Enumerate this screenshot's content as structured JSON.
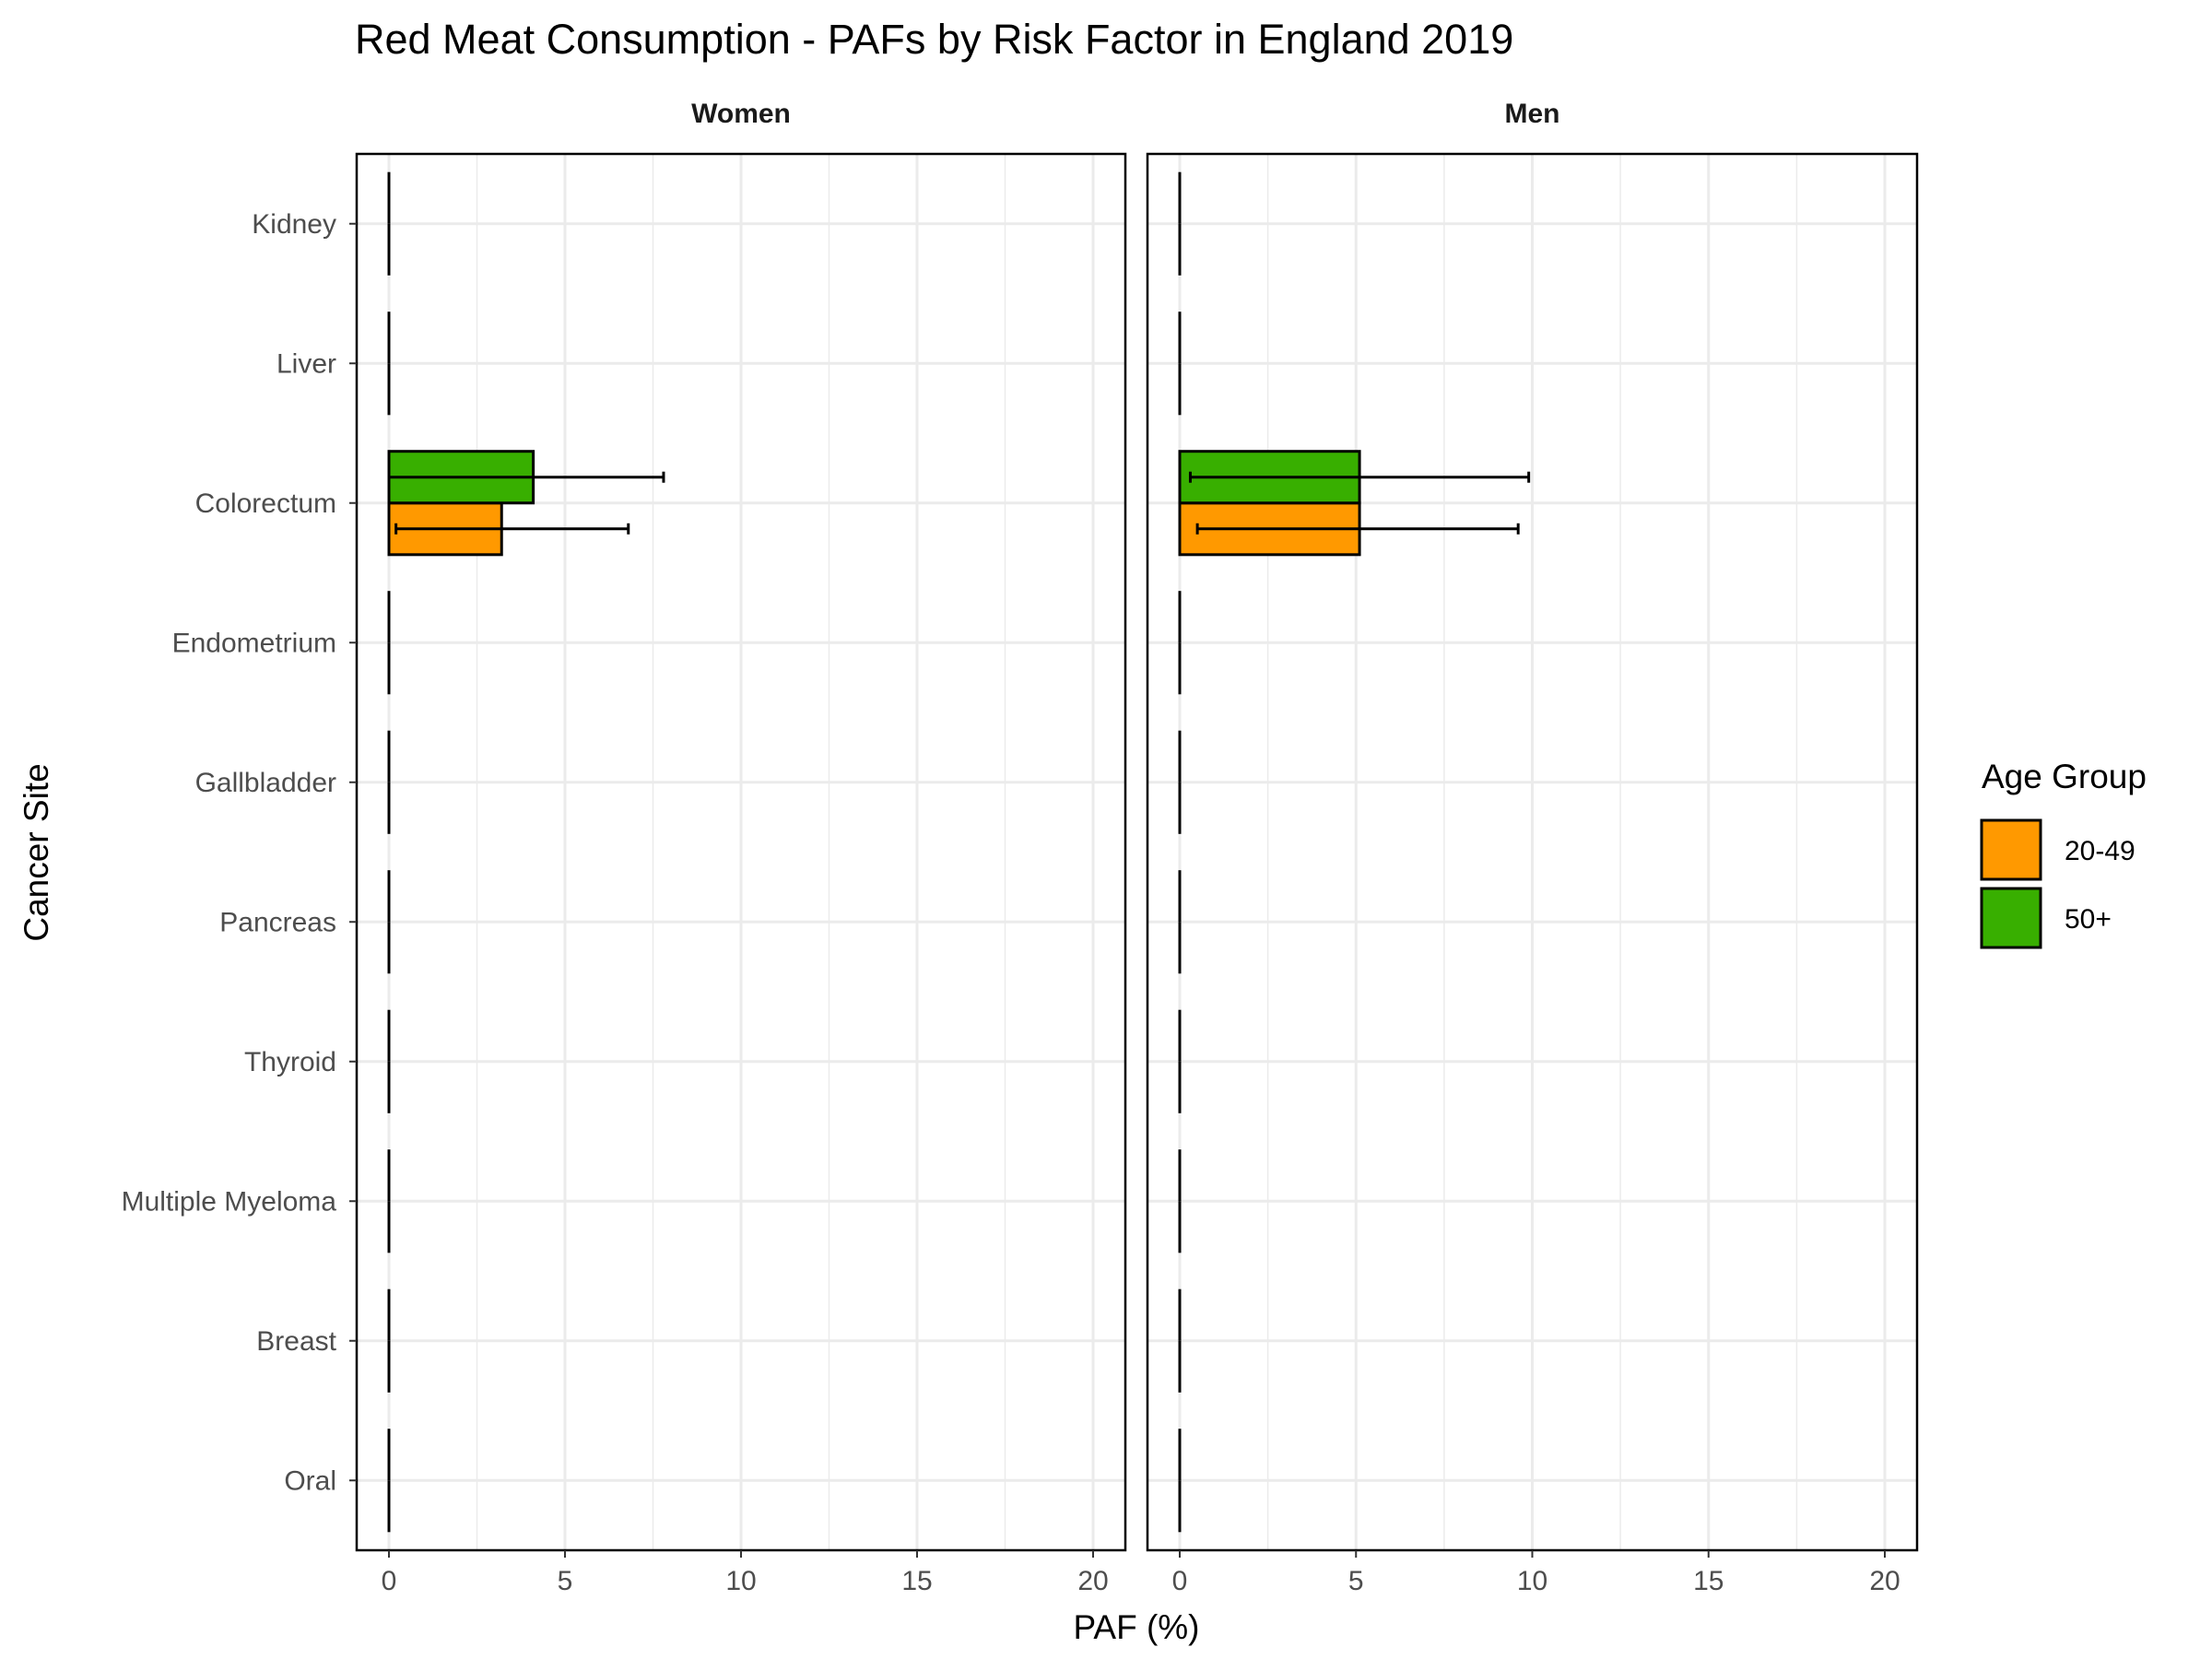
{
  "chart_data": {
    "type": "bar",
    "orientation": "horizontal",
    "title": "Red Meat Consumption  - PAFs by Risk Factor in England 2019",
    "xlabel": "PAF (%)",
    "ylabel": "Cancer Site",
    "xlim": [
      0,
      20
    ],
    "x_ticks": [
      "0",
      "5",
      "10",
      "15",
      "20"
    ],
    "grid": true,
    "legend": {
      "title": "Age Group",
      "position": "right",
      "entries": [
        {
          "label": "20-49",
          "color": "#FF9900"
        },
        {
          "label": "50+",
          "color": "#38AF00"
        }
      ]
    },
    "categories": [
      "Kidney",
      "Liver",
      "Colorectum",
      "Endometrium",
      "Gallbladder",
      "Pancreas",
      "Thyroid",
      "Multiple Myeloma",
      "Breast",
      "Oral"
    ],
    "panels": [
      {
        "name": "Women",
        "series": [
          {
            "name": "20-49",
            "values": [
              0,
              0,
              3.2,
              0,
              0,
              0,
              0,
              0,
              0,
              0
            ],
            "ci_low": [
              0,
              0,
              0.2,
              0,
              0,
              0,
              0,
              0,
              0,
              0
            ],
            "ci_high": [
              0,
              0,
              6.8,
              0,
              0,
              0,
              0,
              0,
              0,
              0
            ]
          },
          {
            "name": "50+",
            "values": [
              0,
              0,
              4.1,
              0,
              0,
              0,
              0,
              0,
              0,
              0
            ],
            "ci_low": [
              0,
              0,
              0,
              0,
              0,
              0,
              0,
              0,
              0,
              0
            ],
            "ci_high": [
              0,
              0,
              7.8,
              0,
              0,
              0,
              0,
              0,
              0,
              0
            ]
          }
        ]
      },
      {
        "name": "Men",
        "series": [
          {
            "name": "20-49",
            "values": [
              0,
              0,
              5.1,
              0,
              0,
              0,
              0,
              0,
              0,
              0
            ],
            "ci_low": [
              0,
              0,
              0.5,
              0,
              0,
              0,
              0,
              0,
              0,
              0
            ],
            "ci_high": [
              0,
              0,
              9.6,
              0,
              0,
              0,
              0,
              0,
              0,
              0
            ]
          },
          {
            "name": "50+",
            "values": [
              0,
              0,
              5.1,
              0,
              0,
              0,
              0,
              0,
              0,
              0
            ],
            "ci_low": [
              0,
              0,
              0.3,
              0,
              0,
              0,
              0,
              0,
              0,
              0
            ],
            "ci_high": [
              0,
              0,
              9.9,
              0,
              0,
              0,
              0,
              0,
              0,
              0
            ]
          }
        ]
      }
    ]
  }
}
